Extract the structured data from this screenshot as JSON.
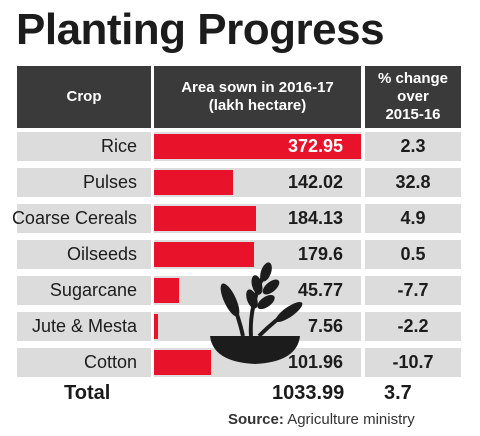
{
  "title": "Planting Progress",
  "headers": {
    "crop": "Crop",
    "area_line1": "Area sown in 2016-17",
    "area_line2": "(lakh hectare)",
    "change_line1": "% change",
    "change_line2": "over",
    "change_line3": "2015-16"
  },
  "colors": {
    "bar": "#e8132b",
    "header": "#3a3a3a",
    "cell": "#dcdcdc"
  },
  "chart_data": {
    "type": "bar",
    "title": "Planting Progress",
    "categories": [
      "Rice",
      "Pulses",
      "Coarse Cereals",
      "Oilseeds",
      "Sugarcane",
      "Jute & Mesta",
      "Cotton"
    ],
    "series": [
      {
        "values": [
          372.95,
          142.02,
          184.13,
          179.6,
          45.77,
          7.56,
          101.96
        ]
      }
    ],
    "value_labels": [
      "372.95",
      "142.02",
      "184.13",
      "179.6",
      "45.77",
      "7.56",
      "101.96"
    ],
    "change_labels": [
      "2.3",
      "32.8",
      "4.9",
      "0.5",
      "-7.7",
      "-2.2",
      "-10.7"
    ],
    "xlim": [
      0,
      372.95
    ]
  },
  "total": {
    "label": "Total",
    "area": "1033.99",
    "change": "3.7"
  },
  "source": {
    "label": "Source:",
    "text": "Agriculture ministry"
  },
  "watermark_icon": "wheat-in-bowl-icon"
}
